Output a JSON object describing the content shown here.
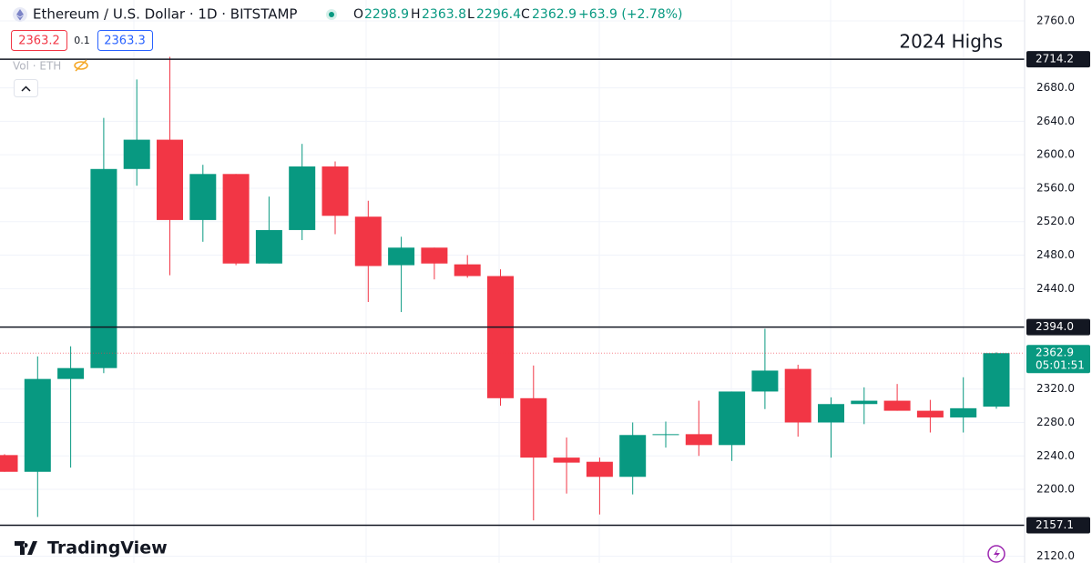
{
  "header": {
    "title": "Ethereum / U.S. Dollar · 1D · BITSTAMP",
    "ohlc_labels": [
      "O",
      "H",
      "L",
      "C"
    ],
    "change": "+63.9 (+2.78%)",
    "sell_price": 2363.2,
    "spread": 0.1,
    "buy_price": 2363.3,
    "volume_label": "Vol · ETH"
  },
  "chart_data": {
    "type": "candlestick",
    "series": {
      "open": [
        2241,
        2221,
        2332,
        2345,
        2583,
        2618,
        2522,
        2577,
        2470,
        2510,
        2586,
        2526,
        2468,
        2489,
        2469,
        2455,
        2309,
        2238,
        2233,
        2215,
        2265,
        2266,
        2253,
        2317,
        2344,
        2280,
        2302,
        2306,
        2294,
        2286,
        2298.9
      ],
      "high": [
        2242,
        2359,
        2371,
        2644,
        2690,
        2717,
        2588,
        2577,
        2550,
        2613,
        2592,
        2545,
        2502,
        2489,
        2480,
        2463,
        2348,
        2262,
        2238,
        2280,
        2281,
        2306,
        2317,
        2392,
        2349,
        2310,
        2322,
        2326,
        2307,
        2334,
        2363.8
      ],
      "low": [
        2221,
        2167,
        2226,
        2339,
        2563,
        2456,
        2496,
        2468,
        2470,
        2498,
        2505,
        2424,
        2412,
        2451,
        2453,
        2300,
        2163,
        2195,
        2170,
        2194,
        2250,
        2240,
        2234,
        2296,
        2263,
        2238,
        2278,
        2294,
        2268,
        2268,
        2296.4
      ],
      "close": [
        2221,
        2332,
        2345,
        2583,
        2618,
        2522,
        2577,
        2470,
        2510,
        2586,
        2527,
        2467,
        2489,
        2470,
        2455,
        2309,
        2238,
        2232,
        2215,
        2265,
        2266,
        2253,
        2317,
        2342,
        2280,
        2302,
        2306,
        2294,
        2286,
        2297,
        2362.9
      ]
    },
    "up_color": "#089981",
    "down_color": "#f23645",
    "ylim": [
      2112,
      2785
    ],
    "yticks": [
      {
        "value": 2120,
        "label": "2120.0"
      },
      {
        "value": 2200,
        "label": "2200.0"
      },
      {
        "value": 2240,
        "label": "2240.0"
      },
      {
        "value": 2280,
        "label": "2280.0"
      },
      {
        "value": 2320,
        "label": "2320.0"
      },
      {
        "value": 2440,
        "label": "2440.0"
      },
      {
        "value": 2480,
        "label": "2480.0"
      },
      {
        "value": 2520,
        "label": "2520.0"
      },
      {
        "value": 2560,
        "label": "2560.0"
      },
      {
        "value": 2600,
        "label": "2600.0"
      },
      {
        "value": 2640,
        "label": "2640.0"
      },
      {
        "value": 2680,
        "label": "2680.0"
      },
      {
        "value": 2760,
        "label": "2760.0"
      }
    ],
    "hlines": [
      2714.2,
      {
        "value": 2394,
        "label": "2394.0"
      },
      2157.1
    ],
    "annotation": "2024 Highs",
    "countdown": "05:01:51",
    "grid": true
  },
  "footer": {
    "logo": "TradingView"
  }
}
